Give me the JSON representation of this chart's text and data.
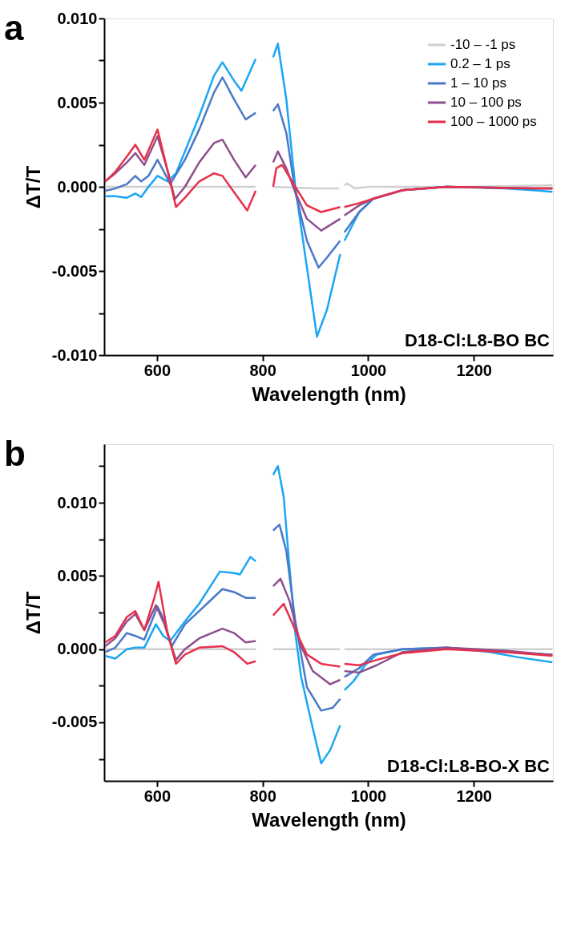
{
  "chart_data": [
    {
      "type": "line",
      "xlabel": "Wavelength (nm)",
      "ylabel": "ΔT/T",
      "annotations": [
        "a",
        "D18-Cl:L8-BO  BC"
      ],
      "xlim": [
        500,
        1350
      ],
      "xticks": [
        600,
        800,
        1000,
        1200
      ],
      "ylim": [
        -0.01,
        0.01
      ],
      "yticks": [
        {
          "value": -0.01,
          "label": "-0.010"
        },
        {
          "value": -0.0075,
          "label": null
        },
        {
          "value": -0.005,
          "label": "-0.005"
        },
        {
          "value": -0.0025,
          "label": null
        },
        {
          "value": 0,
          "label": "0.000"
        },
        {
          "value": 0.0025,
          "label": null
        },
        0.005,
        {
          "value": 0.0075,
          "label": null
        },
        {
          "value": 0.01,
          "label": "0.010"
        }
      ],
      "legend": "top right",
      "grid": false,
      "marker": "none",
      "line_style": "solid",
      "series": [
        {
          "name": "-10 – -1 ps",
          "color": "#d0d0d0",
          "x": [
            502,
            600,
            700,
            787,
            800,
            820,
            900,
            945,
            950,
            955,
            960,
            975,
            1000,
            1200,
            1349
          ],
          "values": [
            0,
            0,
            0,
            0,
            null,
            0,
            -0.0001,
            -0.0001,
            null,
            0.0001,
            0.0002,
            -0.0001,
            0,
            0,
            0.0001
          ]
        },
        {
          "name": "0.2 – 1 ps",
          "color": "#1aa6f5",
          "x": [
            502,
            521,
            543,
            559,
            570,
            584,
            601,
            620,
            636,
            653,
            680,
            708,
            724,
            746,
            760,
            787,
            800,
            820,
            829,
            845,
            862,
            884,
            903,
            922,
            947,
            950,
            955,
            983,
            1010,
            1065,
            1148,
            1258,
            1313,
            1349
          ],
          "values": [
            -0.00056,
            -0.00056,
            -0.00065,
            -0.0004,
            -0.00061,
            0,
            0.00065,
            0.00032,
            0.0008,
            0.0021,
            0.0042,
            0.0066,
            0.0074,
            0.0063,
            0.0057,
            0.0076,
            null,
            0.0077,
            0.0085,
            0.0052,
            0,
            -0.0048,
            -0.0089,
            -0.0073,
            -0.004,
            null,
            -0.0032,
            -0.0015,
            -0.0007,
            -0.0002,
            0,
            -0.0001,
            -0.0002,
            -0.0003
          ]
        },
        {
          "name": "1 – 10 ps",
          "color": "#4a78c8",
          "x": [
            502,
            521,
            543,
            559,
            570,
            584,
            601,
            612,
            625,
            653,
            680,
            708,
            724,
            746,
            768,
            787,
            800,
            820,
            829,
            845,
            862,
            884,
            906,
            922,
            947,
            950,
            955,
            983,
            1010,
            1065,
            1148,
            1313,
            1349
          ],
          "values": [
            -0.00024,
            -0.0001,
            0.00016,
            0.00065,
            0.00032,
            0.00065,
            0.0016,
            0.00097,
            0.00016,
            0.0016,
            0.0034,
            0.0056,
            0.0065,
            0.0052,
            0.004,
            0.0044,
            null,
            0.0045,
            0.0049,
            0.0032,
            -0.00032,
            -0.0032,
            -0.0048,
            -0.0042,
            -0.0032,
            null,
            -0.0027,
            -0.0015,
            -0.0007,
            -0.0002,
            0,
            -0.0001,
            -0.0001
          ]
        },
        {
          "name": "10 – 100 ps",
          "color": "#8e4f8e",
          "x": [
            502,
            521,
            543,
            559,
            576,
            601,
            620,
            634,
            653,
            680,
            708,
            724,
            746,
            768,
            787,
            800,
            820,
            829,
            845,
            862,
            884,
            911,
            947,
            950,
            955,
            983,
            1010,
            1065,
            1148,
            1313,
            1349
          ],
          "values": [
            0.00032,
            0.0008,
            0.00145,
            0.002,
            0.0013,
            0.003,
            0.00097,
            -0.00073,
            0,
            0.00145,
            0.0026,
            0.0028,
            0.0016,
            0.00056,
            0.0013,
            null,
            0.00145,
            0.0021,
            0.0011,
            -0.00032,
            -0.0019,
            -0.0026,
            -0.0019,
            null,
            -0.0017,
            -0.0011,
            -0.0007,
            -0.0002,
            0,
            -0.0001,
            -0.0001
          ]
        },
        {
          "name": "100 – 1000 ps",
          "color": "#e8304a",
          "x": [
            502,
            521,
            543,
            559,
            576,
            601,
            620,
            636,
            653,
            680,
            708,
            724,
            746,
            771,
            787,
            800,
            820,
            826,
            837,
            862,
            884,
            911,
            947,
            950,
            955,
            983,
            1010,
            1065,
            1148,
            1313,
            1349
          ],
          "values": [
            0.00032,
            0.00089,
            0.0018,
            0.0025,
            0.0016,
            0.0034,
            0.00097,
            -0.0012,
            -0.00065,
            0.00032,
            0.0008,
            0.00065,
            -0.00032,
            -0.0014,
            -0.00024,
            null,
            0,
            0.0011,
            0.0013,
            0,
            -0.0011,
            -0.0015,
            -0.0012,
            null,
            -0.0012,
            -0.00097,
            -0.0007,
            -0.0002,
            0,
            -0.0001,
            -0.0001
          ]
        }
      ]
    },
    {
      "type": "line",
      "xlabel": "Wavelength (nm)",
      "ylabel": "ΔT/T",
      "annotations": [
        "b",
        "D18-Cl:L8-BO-X BC"
      ],
      "xlim": [
        500,
        1350
      ],
      "xticks": [
        600,
        800,
        1000,
        1200
      ],
      "ylim": [
        -0.009,
        0.014
      ],
      "yticks": [
        {
          "value": -0.0075,
          "label": null
        },
        {
          "value": -0.005,
          "label": "-0.005"
        },
        {
          "value": -0.0025,
          "label": null
        },
        {
          "value": 0,
          "label": "0.000"
        },
        {
          "value": 0.0025,
          "label": null
        },
        0.005,
        {
          "value": 0.0075,
          "label": null
        },
        {
          "value": 0.01,
          "label": "0.010"
        },
        {
          "value": 0.0125,
          "label": null
        }
      ],
      "legend": "top right",
      "grid": false,
      "marker": "none",
      "line_style": "solid",
      "series": [
        {
          "name": "-10 – -1 ps",
          "color": "#d0d0d0",
          "x": [
            502,
            600,
            700,
            787,
            800,
            820,
            900,
            947,
            950,
            955,
            1100,
            1200,
            1349
          ],
          "values": [
            0,
            0,
            0,
            0,
            null,
            0,
            0,
            0,
            null,
            0,
            0,
            0,
            0
          ]
        },
        {
          "name": "0.2 – 1 ps",
          "color": "#1aa6f5",
          "x": [
            502,
            521,
            543,
            559,
            576,
            598,
            612,
            625,
            653,
            680,
            719,
            746,
            757,
            777,
            787,
            800,
            820,
            829,
            840,
            851,
            862,
            873,
            895,
            911,
            928,
            947,
            950,
            955,
            972,
            994,
            1016,
            1065,
            1148,
            1230,
            1285,
            1349
          ],
          "values": [
            -0.00046,
            -0.00065,
            0,
            0.0001,
            0.0001,
            0.0017,
            0.0009,
            0.00056,
            0.0019,
            0.0031,
            0.0053,
            0.0052,
            0.0051,
            0.0063,
            0.006,
            null,
            0.0119,
            0.0125,
            0.0104,
            0.0056,
            0.0011,
            -0.0019,
            -0.0054,
            -0.0078,
            -0.0069,
            -0.0052,
            null,
            -0.0028,
            -0.0022,
            -0.0011,
            -0.00037,
            0,
            0.0001,
            -0.0002,
            -0.00056,
            -0.0009
          ]
        },
        {
          "name": "1 – 10 ps",
          "color": "#4a78c8",
          "x": [
            502,
            521,
            543,
            559,
            576,
            601,
            612,
            628,
            653,
            680,
            724,
            746,
            768,
            787,
            800,
            820,
            832,
            845,
            862,
            884,
            911,
            933,
            947,
            950,
            955,
            983,
            1010,
            1065,
            1148,
            1258,
            1349
          ],
          "values": [
            -0.0002,
            0.0001,
            0.0011,
            0.0009,
            0.00065,
            0.0029,
            0.0021,
            0.0002,
            0.0017,
            0.0026,
            0.0041,
            0.0039,
            0.0035,
            0.0035,
            null,
            0.0081,
            0.0085,
            0.0067,
            0.0019,
            -0.0026,
            -0.0042,
            -0.004,
            -0.0034,
            null,
            -0.0019,
            -0.0013,
            -0.00037,
            0,
            0.0001,
            -0.0002,
            -0.00037
          ]
        },
        {
          "name": "10 – 100 ps",
          "color": "#8e4f8e",
          "x": [
            502,
            521,
            543,
            559,
            576,
            598,
            614,
            636,
            653,
            680,
            724,
            746,
            768,
            787,
            800,
            820,
            834,
            851,
            873,
            895,
            928,
            947,
            950,
            955,
            983,
            1016,
            1065,
            1148,
            1258,
            1349
          ],
          "values": [
            0.0002,
            0.00074,
            0.0019,
            0.0024,
            0.0013,
            0.003,
            0.0017,
            -0.00074,
            0,
            0.00074,
            0.0014,
            0.0011,
            0.00046,
            0.00056,
            null,
            0.0043,
            0.0048,
            0.0033,
            0.0002,
            -0.0015,
            -0.0024,
            -0.0021,
            null,
            -0.0015,
            -0.0016,
            -0.0011,
            -0.0002,
            0.0001,
            -0.0001,
            -0.0004
          ]
        },
        {
          "name": "100 – 1000 ps",
          "color": "#e8304a",
          "x": [
            502,
            521,
            543,
            559,
            576,
            595,
            603,
            620,
            636,
            653,
            680,
            724,
            746,
            771,
            787,
            800,
            820,
            840,
            862,
            884,
            911,
            947,
            950,
            955,
            983,
            1016,
            1065,
            1148,
            1258,
            1349
          ],
          "values": [
            0.00046,
            0.0009,
            0.0022,
            0.0026,
            0.0013,
            0.0035,
            0.0046,
            0.0011,
            -0.001,
            -0.00037,
            0.0001,
            0.0002,
            -0.0002,
            -0.001,
            -0.00083,
            null,
            0.0023,
            0.0031,
            0.0013,
            -0.00037,
            -0.001,
            -0.0012,
            null,
            -0.001,
            -0.0011,
            -0.00074,
            -0.00028,
            0,
            -0.0002,
            -0.00046
          ]
        }
      ]
    }
  ]
}
